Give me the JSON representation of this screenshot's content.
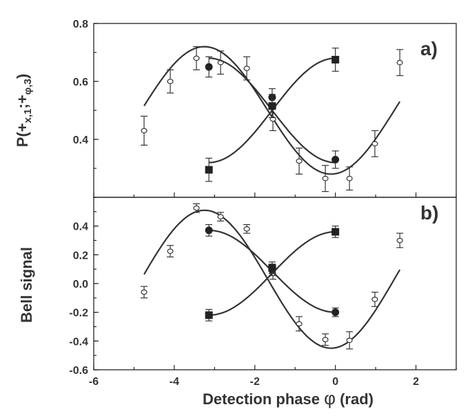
{
  "chart_data": [
    {
      "type": "scatter",
      "panel_label": "a)",
      "ylabel": "P(+x,1;+φ,3)",
      "xlim": [
        -6,
        3
      ],
      "ylim": [
        0.2,
        0.8
      ],
      "yticks": [
        "0.4",
        "0.6",
        "0.8"
      ],
      "ytick_values": [
        0.4,
        0.6,
        0.8
      ],
      "grid": false,
      "series": [
        {
          "marker": "open-circle",
          "points": [
            {
              "x": -4.75,
              "y": 0.43,
              "err": 0.05
            },
            {
              "x": -4.1,
              "y": 0.6,
              "err": 0.04
            },
            {
              "x": -3.45,
              "y": 0.68,
              "err": 0.04
            },
            {
              "x": -2.85,
              "y": 0.665,
              "err": 0.04
            },
            {
              "x": -2.2,
              "y": 0.645,
              "err": 0.04
            },
            {
              "x": -1.55,
              "y": 0.47,
              "err": 0.04
            },
            {
              "x": -0.9,
              "y": 0.325,
              "err": 0.045
            },
            {
              "x": -0.25,
              "y": 0.265,
              "err": 0.045
            },
            {
              "x": 0.35,
              "y": 0.265,
              "err": 0.04
            },
            {
              "x": 0.98,
              "y": 0.385,
              "err": 0.045
            },
            {
              "x": 1.6,
              "y": 0.665,
              "err": 0.045
            }
          ],
          "fit": {
            "amplitude": 0.22,
            "offset": 0.5,
            "phase": -3.25,
            "x_range": [
              -4.75,
              1.6
            ]
          }
        },
        {
          "marker": "filled-circle",
          "points": [
            {
              "x": -3.14,
              "y": 0.65,
              "err": 0.035
            },
            {
              "x": -1.57,
              "y": 0.545,
              "err": 0.03
            },
            {
              "x": 0.0,
              "y": 0.33,
              "err": 0.03
            }
          ],
          "fit": {
            "amplitude": 0.18,
            "offset": 0.5,
            "phase": -3.14,
            "x_range": [
              -3.14,
              0.0
            ]
          }
        },
        {
          "marker": "filled-square",
          "points": [
            {
              "x": -3.14,
              "y": 0.295,
              "err": 0.04
            },
            {
              "x": -1.57,
              "y": 0.515,
              "err": 0.04
            },
            {
              "x": 0.0,
              "y": 0.675,
              "err": 0.04
            }
          ],
          "fit": {
            "amplitude": 0.18,
            "offset": 0.5,
            "phase": 0.0,
            "x_range": [
              -3.14,
              0.0
            ]
          }
        }
      ]
    },
    {
      "type": "scatter",
      "panel_label": "b)",
      "ylabel": "Bell signal",
      "xlabel": "Detection phase φ (rad)",
      "xlim": [
        -6,
        3
      ],
      "ylim": [
        -0.6,
        0.6
      ],
      "xticks": [
        "-6",
        "-4",
        "-2",
        "0",
        "2"
      ],
      "xtick_values": [
        -6,
        -4,
        -2,
        0,
        2
      ],
      "yticks": [
        "-0.6",
        "-0.4",
        "-0.2",
        "0.0",
        "0.2",
        "0.4"
      ],
      "ytick_values": [
        -0.6,
        -0.4,
        -0.2,
        0.0,
        0.2,
        0.4
      ],
      "grid": false,
      "series": [
        {
          "marker": "open-circle",
          "points": [
            {
              "x": -4.75,
              "y": -0.06,
              "err": 0.04
            },
            {
              "x": -4.1,
              "y": 0.225,
              "err": 0.04
            },
            {
              "x": -3.45,
              "y": 0.525,
              "err": 0.03
            },
            {
              "x": -2.85,
              "y": 0.465,
              "err": 0.03
            },
            {
              "x": -2.2,
              "y": 0.38,
              "err": 0.03
            },
            {
              "x": -1.55,
              "y": 0.07,
              "err": 0.04
            },
            {
              "x": -0.9,
              "y": -0.28,
              "err": 0.05
            },
            {
              "x": -0.25,
              "y": -0.39,
              "err": 0.04
            },
            {
              "x": 0.35,
              "y": -0.395,
              "err": 0.06
            },
            {
              "x": 0.98,
              "y": -0.11,
              "err": 0.05
            },
            {
              "x": 1.6,
              "y": 0.3,
              "err": 0.05
            }
          ],
          "fit": {
            "amplitude": 0.48,
            "offset": 0.03,
            "phase": -3.25,
            "x_range": [
              -4.75,
              1.6
            ]
          }
        },
        {
          "marker": "filled-circle",
          "points": [
            {
              "x": -3.14,
              "y": 0.37,
              "err": 0.04
            },
            {
              "x": -1.57,
              "y": 0.095,
              "err": 0.04
            },
            {
              "x": 0.0,
              "y": -0.2,
              "err": 0.03
            }
          ],
          "fit": {
            "amplitude": 0.285,
            "offset": 0.085,
            "phase": -3.14,
            "x_range": [
              -3.14,
              0.0
            ]
          }
        },
        {
          "marker": "filled-square",
          "points": [
            {
              "x": -3.14,
              "y": -0.22,
              "err": 0.04
            },
            {
              "x": -1.57,
              "y": 0.11,
              "err": 0.04
            },
            {
              "x": 0.0,
              "y": 0.36,
              "err": 0.04
            }
          ],
          "fit": {
            "amplitude": 0.29,
            "offset": 0.07,
            "phase": 0.0,
            "x_range": [
              -3.14,
              0.0
            ]
          }
        }
      ]
    }
  ],
  "labels": {
    "panel_a": "a)",
    "panel_b": "b)",
    "ylabel_a_open": "P(",
    "ylabel_a_plus1": "+",
    "ylabel_a_sub1": "x,1",
    "ylabel_a_sep": ";",
    "ylabel_a_plus2": "+",
    "ylabel_a_sub2": "φ,3",
    "ylabel_a_close": ")",
    "ylabel_b": "Bell signal",
    "xlabel_main": "Detection phase ",
    "xlabel_phi": "φ",
    "xlabel_unit": "  (rad)"
  }
}
